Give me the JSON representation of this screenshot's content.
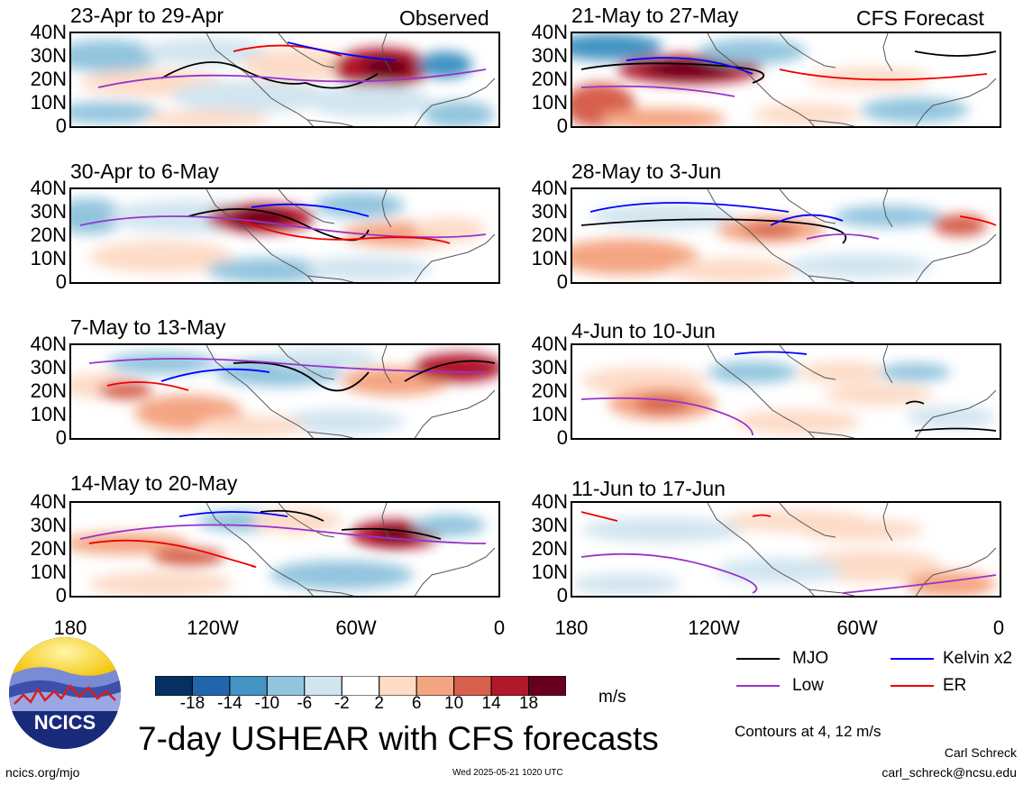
{
  "panels_left": [
    {
      "label": "23-Apr to 29-Apr",
      "tag": "Observed"
    },
    {
      "label": "30-Apr to 6-May",
      "tag": ""
    },
    {
      "label": "7-May to 13-May",
      "tag": ""
    },
    {
      "label": "14-May to 20-May",
      "tag": ""
    }
  ],
  "panels_right": [
    {
      "label": "21-May to 27-May",
      "tag": "CFS Forecast"
    },
    {
      "label": "28-May to 3-Jun",
      "tag": ""
    },
    {
      "label": "4-Jun to 10-Jun",
      "tag": ""
    },
    {
      "label": "11-Jun to 17-Jun",
      "tag": ""
    }
  ],
  "lat_ticks": [
    "40N",
    "30N",
    "20N",
    "10N",
    "0"
  ],
  "lon_ticks": [
    "180",
    "120W",
    "60W",
    "0"
  ],
  "colorbar": {
    "colors": [
      "#053061",
      "#2166ac",
      "#4393c3",
      "#92c5de",
      "#d1e5f0",
      "#ffffff",
      "#fddbc7",
      "#f4a582",
      "#d6604d",
      "#b2182b",
      "#67001f"
    ],
    "labels": [
      "-18",
      "-14",
      "-10",
      "-6",
      "-2",
      "2",
      "6",
      "10",
      "14",
      "18"
    ],
    "unit": "m/s"
  },
  "legend": [
    {
      "name": "MJO",
      "color": "#000000"
    },
    {
      "name": "Kelvin x2",
      "color": "#0000ff"
    },
    {
      "name": "Low",
      "color": "#9932cc"
    },
    {
      "name": "ER",
      "color": "#ee0000"
    }
  ],
  "contour_note": "Contours at 4, 12 m/s",
  "title": "7-day USHEAR with CFS forecasts",
  "logo_text": "NCICS",
  "author": "Carl Schreck",
  "email": "carl_schreck@ncsu.edu",
  "url": "ncics.org/mjo",
  "timestamp": "Wed 2025-05-21 1020 UTC"
}
